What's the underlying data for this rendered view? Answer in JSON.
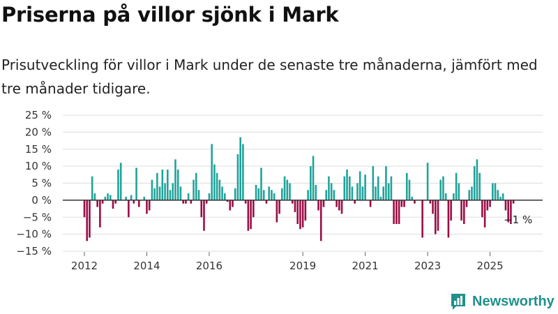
{
  "chart_data": {
    "type": "bar",
    "title": "Priserna på villor sjönk i Mark",
    "subtitle": "Prisutveckling för villor i Mark under de senaste tre månaderna, jämfört med tre månader tidigare.",
    "ylabel": "",
    "xlabel": "",
    "ylim": [
      -15,
      25
    ],
    "y_ticks": [
      {
        "value": 25,
        "label": "25 %"
      },
      {
        "value": 20,
        "label": "20 %"
      },
      {
        "value": 15,
        "label": "15 %"
      },
      {
        "value": 10,
        "label": "10 %"
      },
      {
        "value": 5,
        "label": "5 %"
      },
      {
        "value": 0,
        "label": "0 %"
      },
      {
        "value": -5,
        "label": "−5 %"
      },
      {
        "value": -10,
        "label": "−10 %"
      },
      {
        "value": -15,
        "label": "−15 %"
      }
    ],
    "x_ticks": [
      {
        "year": 2012,
        "label": "2012"
      },
      {
        "year": 2014,
        "label": "2014"
      },
      {
        "year": 2016,
        "label": "2016"
      },
      {
        "year": 2019,
        "label": "2019"
      },
      {
        "year": 2021,
        "label": "2021"
      },
      {
        "year": 2023,
        "label": "2023"
      },
      {
        "year": 2025,
        "label": "2025"
      }
    ],
    "x_start": 2012,
    "x_start_month": 1,
    "last_value_label": "−1 %",
    "positive_color": "#20a39a",
    "negative_color": "#9b0d45",
    "values": [
      -5,
      -12,
      -11,
      7,
      2,
      -2,
      -8,
      -1,
      1,
      2,
      1.5,
      -2.5,
      -1,
      9,
      11,
      0,
      1,
      -5,
      1.5,
      -1,
      9.5,
      -2,
      0,
      1,
      -4,
      -3,
      6,
      3.5,
      8,
      4,
      9,
      5,
      9,
      3,
      5,
      12,
      9,
      4,
      -1,
      -1,
      2,
      -1,
      6,
      8,
      3,
      -5,
      -9,
      -1,
      2,
      16.5,
      10.5,
      8,
      6,
      4,
      2,
      -0.5,
      -3,
      -2,
      3.5,
      13.5,
      18.5,
      16.5,
      -1,
      -9,
      -8.5,
      -5,
      4.5,
      3.5,
      9.5,
      3,
      -1,
      4,
      3,
      2,
      -6.5,
      -4,
      3.5,
      7,
      6,
      5,
      -1,
      -3.5,
      -7,
      -8.5,
      -8,
      -6,
      3,
      10,
      13,
      4.5,
      -3,
      -12,
      -2,
      3,
      7,
      5,
      3,
      -2,
      -3,
      -4,
      7,
      9,
      7,
      4,
      -1,
      5,
      8.5,
      4,
      7.5,
      0,
      -2,
      10,
      4,
      7,
      1,
      4,
      10,
      5,
      7,
      -7,
      -7,
      -7,
      -2,
      -2,
      8,
      6,
      1,
      -1,
      0,
      0,
      -11,
      0,
      11,
      -1,
      -4,
      -10,
      -9,
      6,
      7,
      2,
      -11,
      -6,
      2,
      8,
      5,
      -6,
      -7,
      -2,
      3,
      4,
      10,
      12,
      8,
      -5,
      -8,
      -3,
      -2,
      5,
      5,
      3,
      1,
      2,
      -3,
      -6.5,
      -7,
      -1
    ]
  },
  "branding": {
    "logo_text": "Newsworthy",
    "logo_icon": "newsworthy-bar-icon"
  }
}
